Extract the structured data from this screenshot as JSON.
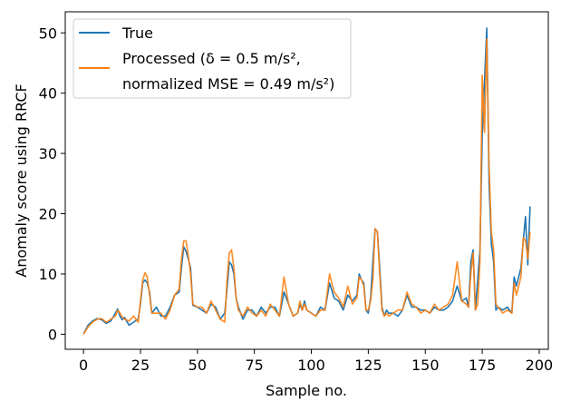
{
  "chart_data": {
    "type": "line",
    "title": "",
    "xlabel": "Sample no.",
    "ylabel": "Anomaly score using RRCF",
    "xlim": [
      -8,
      204
    ],
    "ylim": [
      -2.5,
      53.5
    ],
    "xticks": [
      0,
      25,
      50,
      75,
      100,
      125,
      150,
      175,
      200
    ],
    "yticks": [
      0,
      10,
      20,
      30,
      40,
      50
    ],
    "legend_position": "top-left",
    "colors": {
      "true": "#1f77b4",
      "processed": "#ff7f0e"
    },
    "series": [
      {
        "name": "True",
        "legend": [
          "True"
        ],
        "color": "#1f77b4",
        "x": [
          0,
          2,
          4,
          6,
          8,
          10,
          12,
          14,
          15,
          16,
          17,
          18,
          20,
          22,
          24,
          25,
          26,
          27,
          28,
          29,
          30,
          32,
          34,
          36,
          38,
          40,
          42,
          43,
          44,
          45,
          46,
          47,
          48,
          50,
          52,
          54,
          56,
          58,
          60,
          62,
          63,
          64,
          65,
          66,
          67,
          68,
          70,
          72,
          74,
          76,
          78,
          80,
          82,
          84,
          86,
          88,
          90,
          92,
          94,
          95,
          96,
          97,
          98,
          100,
          102,
          104,
          106,
          108,
          110,
          112,
          114,
          116,
          118,
          120,
          121,
          122,
          123,
          124,
          125,
          126,
          127,
          128,
          129,
          130,
          131,
          132,
          133,
          134,
          136,
          138,
          140,
          142,
          144,
          146,
          148,
          150,
          152,
          154,
          156,
          158,
          160,
          162,
          164,
          166,
          168,
          169,
          170,
          171,
          172,
          173,
          174,
          175,
          176,
          177,
          178,
          179,
          180,
          181,
          182,
          184,
          186,
          188,
          189,
          190,
          191,
          192,
          193,
          194,
          195,
          196
        ],
        "y": [
          0,
          1.5,
          2.2,
          2.6,
          2.4,
          1.8,
          2.2,
          3.5,
          4.2,
          3.0,
          2.4,
          2.8,
          1.5,
          2.0,
          2.5,
          5.0,
          8.5,
          9.0,
          8.5,
          7.0,
          3.5,
          4.5,
          3.0,
          3.0,
          4.5,
          6.5,
          7.0,
          11.0,
          14.5,
          13.8,
          12.5,
          11.0,
          4.8,
          4.5,
          4.0,
          3.5,
          5.0,
          4.5,
          2.5,
          3.5,
          7.5,
          12.0,
          11.5,
          10.0,
          6.0,
          4.5,
          2.5,
          4.0,
          4.0,
          3.0,
          4.5,
          3.5,
          4.5,
          4.5,
          3.0,
          7.0,
          5.0,
          3.0,
          3.5,
          5.0,
          4.0,
          5.5,
          4.0,
          3.5,
          3.0,
          4.5,
          4.0,
          8.5,
          6.0,
          5.5,
          4.0,
          6.5,
          5.5,
          6.5,
          10.0,
          9.0,
          8.5,
          4.0,
          3.5,
          6.0,
          12.0,
          17.5,
          17.0,
          11.0,
          4.5,
          3.0,
          4.0,
          3.5,
          3.5,
          3.0,
          4.0,
          6.5,
          4.5,
          4.5,
          4.0,
          4.0,
          3.5,
          4.5,
          4.0,
          4.0,
          4.5,
          5.5,
          8.0,
          5.5,
          6.0,
          4.5,
          12.0,
          14.0,
          4.0,
          9.0,
          14.0,
          33.0,
          42.0,
          50.8,
          25.0,
          15.0,
          12.0,
          4.0,
          4.5,
          4.0,
          4.5,
          3.5,
          9.5,
          8.0,
          9.5,
          11.0,
          15.5,
          19.5,
          11.5,
          21.2
        ]
      },
      {
        "name": "Processed",
        "legend": [
          "Processed (δ = 0.5 m/s²,",
          "normalized MSE = 0.49 m/s²)"
        ],
        "color": "#ff7f0e",
        "x": [
          0,
          2,
          4,
          6,
          8,
          10,
          12,
          14,
          15,
          16,
          17,
          18,
          20,
          22,
          24,
          25,
          26,
          27,
          28,
          29,
          30,
          32,
          34,
          36,
          38,
          40,
          42,
          43,
          44,
          45,
          46,
          47,
          48,
          50,
          52,
          54,
          56,
          58,
          60,
          62,
          63,
          64,
          65,
          66,
          67,
          68,
          70,
          72,
          74,
          76,
          78,
          80,
          82,
          84,
          86,
          88,
          90,
          92,
          94,
          95,
          96,
          97,
          98,
          100,
          102,
          104,
          106,
          108,
          110,
          112,
          114,
          116,
          118,
          120,
          121,
          122,
          123,
          124,
          125,
          126,
          127,
          128,
          129,
          130,
          131,
          132,
          133,
          134,
          136,
          138,
          140,
          142,
          144,
          146,
          148,
          150,
          152,
          154,
          156,
          158,
          160,
          162,
          164,
          166,
          168,
          169,
          170,
          171,
          172,
          173,
          174,
          175,
          176,
          177,
          178,
          179,
          180,
          181,
          182,
          184,
          186,
          188,
          189,
          190,
          191,
          192,
          193,
          194,
          195,
          196
        ],
        "y": [
          0,
          1.2,
          2.0,
          2.5,
          2.6,
          2.0,
          2.5,
          3.0,
          4.0,
          3.5,
          2.8,
          2.5,
          2.2,
          3.0,
          2.0,
          5.5,
          9.0,
          10.2,
          9.5,
          6.5,
          3.5,
          3.5,
          3.5,
          2.5,
          4.0,
          6.5,
          7.5,
          12.5,
          15.5,
          15.5,
          13.0,
          10.0,
          5.0,
          4.5,
          4.5,
          3.5,
          5.5,
          4.0,
          2.5,
          2.0,
          9.0,
          13.5,
          14.0,
          11.0,
          6.0,
          4.0,
          3.0,
          4.5,
          3.5,
          3.0,
          4.0,
          3.0,
          5.0,
          4.0,
          3.0,
          9.5,
          5.0,
          3.0,
          3.5,
          5.5,
          4.0,
          5.0,
          4.0,
          3.5,
          3.0,
          4.0,
          4.0,
          10.0,
          7.0,
          6.0,
          4.5,
          8.0,
          5.0,
          6.0,
          9.5,
          9.0,
          8.0,
          4.0,
          4.0,
          5.5,
          9.0,
          17.5,
          17.0,
          10.0,
          4.0,
          3.0,
          3.5,
          3.0,
          3.5,
          4.0,
          4.0,
          7.0,
          5.0,
          4.5,
          3.5,
          4.0,
          3.5,
          5.0,
          4.0,
          4.5,
          5.0,
          6.5,
          12.0,
          5.5,
          5.0,
          4.5,
          10.0,
          13.5,
          4.0,
          5.0,
          12.0,
          43.0,
          33.5,
          49.0,
          28.0,
          17.0,
          14.0,
          5.0,
          4.5,
          3.5,
          4.0,
          3.5,
          8.5,
          6.5,
          8.0,
          9.5,
          16.0,
          15.5,
          12.5,
          17.0
        ]
      }
    ]
  }
}
